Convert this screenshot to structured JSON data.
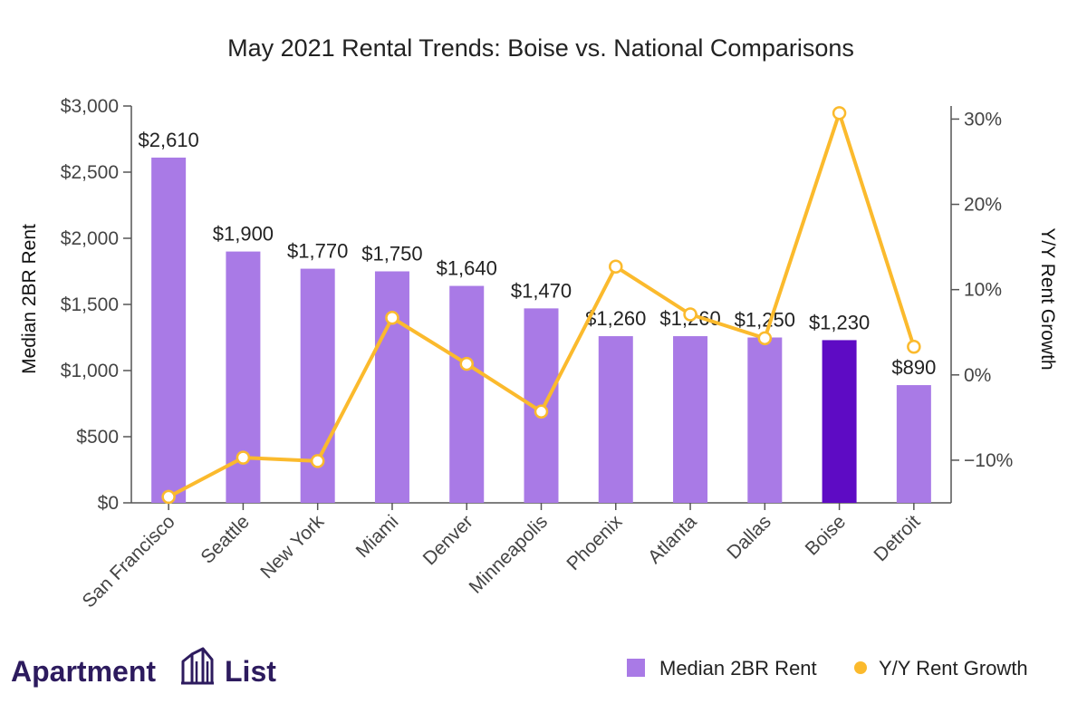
{
  "chart_data": {
    "type": "bar",
    "title": "May 2021 Rental Trends: Boise vs. National Comparisons",
    "ylabel": "Median 2BR Rent",
    "y2label": "Y/Y Rent Growth",
    "xlabel": "",
    "ylim": [
      0,
      3000
    ],
    "y2lim": [
      -0.15,
      0.31
    ],
    "yticks": [
      0,
      500,
      1000,
      1500,
      2000,
      2500,
      3000
    ],
    "ytick_labels": [
      "$0",
      "$500",
      "$1,000",
      "$1,500",
      "$2,000",
      "$2,500",
      "$3,000"
    ],
    "y2ticks": [
      -0.1,
      0,
      0.1,
      0.2,
      0.3
    ],
    "y2tick_labels": [
      "−10%",
      "0%",
      "10%",
      "20%",
      "30%"
    ],
    "categories": [
      "San Francisco",
      "Seattle",
      "New York",
      "Miami",
      "Denver",
      "Minneapolis",
      "Phoenix",
      "Atlanta",
      "Dallas",
      "Boise",
      "Detroit"
    ],
    "series": [
      {
        "name": "Median 2BR Rent",
        "type": "bar",
        "axis": "left",
        "values": [
          2610,
          1900,
          1770,
          1750,
          1640,
          1470,
          1260,
          1260,
          1250,
          1230,
          890
        ],
        "labels": [
          "$2,610",
          "$1,900",
          "$1,770",
          "$1,750",
          "$1,640",
          "$1,470",
          "$1,260",
          "$1,260",
          "$1,250",
          "$1,230",
          "$890"
        ]
      },
      {
        "name": "Y/Y Rent Growth",
        "type": "line",
        "axis": "right",
        "values": [
          -0.143,
          -0.097,
          -0.101,
          0.067,
          0.013,
          -0.043,
          0.127,
          0.071,
          0.043,
          0.307,
          0.033
        ]
      }
    ],
    "highlight_category": "Boise",
    "grid": false,
    "legend_position": "bottom-right",
    "colors": {
      "bar": "#a97ae6",
      "bar_highlight": "#5e0bc4",
      "line": "#fbba2d",
      "marker_fill": "#ffffff",
      "axis": "#555555"
    }
  },
  "branding": {
    "logo_text_left": "Apartment",
    "logo_text_right": "List",
    "logo_icon": "building-icon",
    "text_color": "#2d1b5e"
  }
}
